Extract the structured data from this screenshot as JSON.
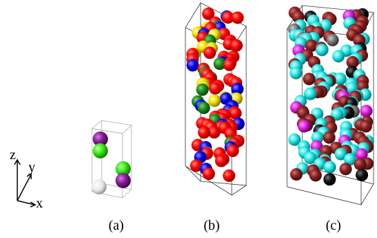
{
  "axes": {
    "z": "z",
    "y": "y",
    "x": "x"
  },
  "panels": [
    {
      "label": "(a)"
    },
    {
      "label": "(b)"
    },
    {
      "label": "(c)"
    }
  ]
}
